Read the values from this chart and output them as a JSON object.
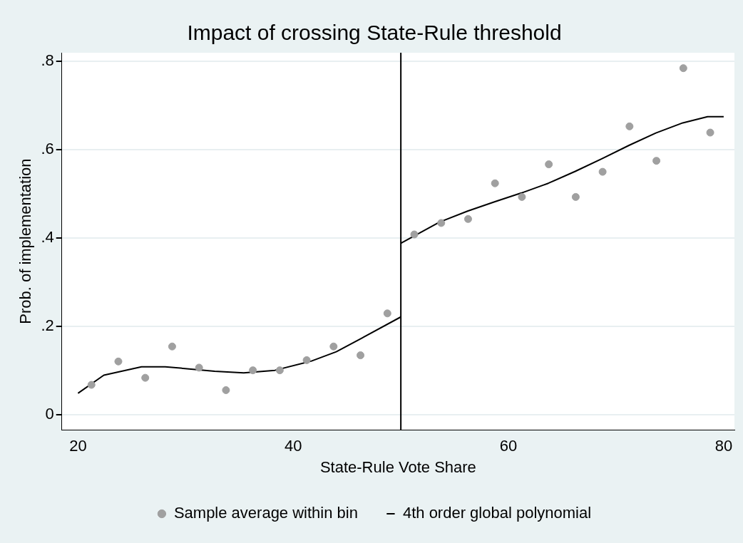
{
  "chart_data": {
    "type": "scatter",
    "title": "Impact of crossing State-Rule threshold",
    "xlabel": "State-Rule Vote Share",
    "ylabel": "Prob. of implementation",
    "series": [
      {
        "name": "Sample average within bin",
        "color": "#a0a0a0",
        "marker": "circle",
        "x": [
          21.25,
          23.75,
          26.25,
          28.75,
          31.25,
          33.75,
          36.25,
          38.75,
          41.25,
          43.75,
          46.25,
          48.75,
          51.25,
          53.75,
          56.25,
          58.75,
          61.25,
          63.75,
          66.25,
          68.75,
          71.25,
          73.75,
          76.25,
          78.75
        ],
        "values": [
          0.067,
          0.12,
          0.083,
          0.154,
          0.106,
          0.055,
          0.1,
          0.1,
          0.123,
          0.154,
          0.134,
          0.229,
          0.408,
          0.434,
          0.443,
          0.524,
          0.493,
          0.567,
          0.493,
          0.55,
          0.653,
          0.575,
          0.785,
          0.639
        ]
      },
      {
        "name": "4th order global polynomial",
        "type": "line",
        "color": "#000000",
        "marker": "none",
        "x": [
          20,
          22.4,
          25.9,
          28.1,
          32.7,
          35.4,
          38.3,
          41.7,
          44,
          46.3,
          50
        ],
        "values": [
          0.048,
          0.089,
          0.108,
          0.108,
          0.098,
          0.094,
          0.1,
          0.121,
          0.142,
          0.172,
          0.221
        ]
      },
      {
        "type": "line",
        "color": "#000000",
        "marker": "none",
        "x": [
          50,
          53.6,
          56.2,
          58.7,
          61.2,
          63.7,
          66.2,
          68.7,
          71.2,
          73.7,
          76.2,
          78.5,
          80
        ],
        "values": [
          0.388,
          0.436,
          0.461,
          0.482,
          0.502,
          0.524,
          0.551,
          0.58,
          0.61,
          0.638,
          0.661,
          0.675,
          0.675
        ]
      }
    ],
    "xlim": [
      18.5,
      81
    ],
    "ylim": [
      -0.035,
      0.82
    ],
    "xticks": [
      20,
      40,
      60,
      80
    ],
    "yticks": [
      0,
      {
        "value": 0.2,
        "label": ".2"
      },
      {
        "value": 0.4,
        "label": ".4"
      },
      {
        "value": 0.6,
        "label": ".6"
      },
      {
        "value": 0.8,
        "label": ".8"
      }
    ],
    "ref_lines": [
      {
        "axis": "x",
        "value": 50,
        "color": "#000000"
      }
    ],
    "grid": "y",
    "legend": "bottom"
  }
}
